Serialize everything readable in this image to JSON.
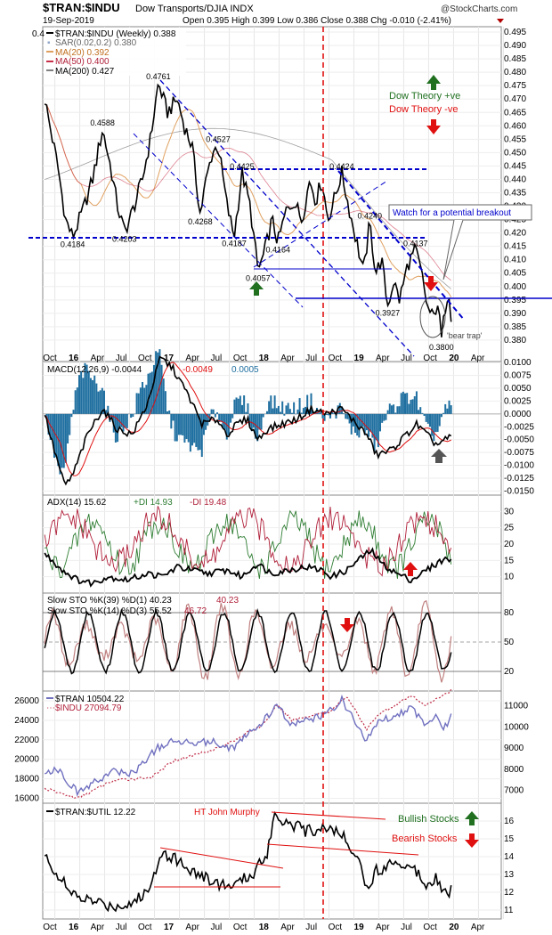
{
  "header": {
    "symbol": "$TRAN:$INDU",
    "description": "Dow Transports/DJIA INDX",
    "watermark": "@StockCharts.com",
    "date": "19-Sep-2019",
    "ohlc": "Open 0.395  High 0.399  Low 0.386  Close 0.388  Chg -0.010 (-2.41%)",
    "partial_left": "0.4"
  },
  "colors": {
    "black": "#000000",
    "sar": "#8fa6c8",
    "ma20": "#e0a060",
    "ma50": "#c8304a",
    "ma200": "#a0a0a0",
    "red": "#e01010",
    "blue": "#0000cc",
    "green": "#207020",
    "macd_hist": "#1f6fa0",
    "macd_signal": "#e01010",
    "plus_di": "#2e7d32",
    "minus_di": "#b0203a",
    "sto_slow": "#c08080",
    "tran": "#7070c0",
    "indu": "#c0304a"
  },
  "x_axis": [
    "Oct",
    "16",
    "Apr",
    "Jul",
    "Oct",
    "17",
    "Apr",
    "Jul",
    "Oct",
    "18",
    "Apr",
    "Jul",
    "Oct",
    "19",
    "Apr",
    "Jul",
    "Oct",
    "20",
    "Apr"
  ],
  "chart_data": [
    {
      "type": "line",
      "panel": "price",
      "legend": {
        "main": "$TRAN:$INDU (Weekly) 0.388",
        "sar": "SAR(0.02,0.2) 0.380",
        "ma20": "MA(20) 0.392",
        "ma50": "MA(50) 0.400",
        "ma200": "MA(200) 0.427"
      },
      "ylim": [
        0.372,
        0.497
      ],
      "y_ticks": [
        "0.495",
        "0.490",
        "0.485",
        "0.480",
        "0.475",
        "0.470",
        "0.465",
        "0.460",
        "0.455",
        "0.450",
        "0.445",
        "0.440",
        "0.435",
        "0.430",
        "0.425",
        "0.420",
        "0.415",
        "0.410",
        "0.405",
        "0.400",
        "0.395",
        "0.390",
        "0.385",
        "0.380"
      ],
      "price_labels": [
        "0.4184",
        "0.4203",
        "0.4588",
        "0.4761",
        "0.4268",
        "0.4527",
        "0.4425",
        "0.4187",
        "0.4057",
        "0.4164",
        "0.4424",
        "0.4240",
        "0.3927",
        "0.4137",
        "0.3800"
      ],
      "annotations": {
        "dow_pos": "Dow Theory +ve",
        "dow_neg": "Dow Theory -ve",
        "breakout": "Watch for a potential breakout",
        "bear_trap": "'bear trap'"
      }
    },
    {
      "type": "bar",
      "panel": "macd",
      "legend": {
        "macd": "MACD(12,26,9) -0.0044",
        "signal": "-0.0049",
        "hist": "0.0005"
      },
      "ylim": [
        -0.0158,
        0.0102
      ],
      "y_ticks": [
        "0.0100",
        "0.0075",
        "0.0050",
        "0.0025",
        "0.0000",
        "-0.0025",
        "-0.0050",
        "-0.0075",
        "-0.0100",
        "-0.0125",
        "-0.0150"
      ]
    },
    {
      "type": "line",
      "panel": "adx",
      "legend": {
        "adx": "ADX(14) 15.62",
        "plus": "+DI 14.93",
        "minus": "-DI 19.48"
      },
      "ylim": [
        5,
        35
      ],
      "y_ticks": [
        "30",
        "25",
        "20",
        "15",
        "10"
      ]
    },
    {
      "type": "line",
      "panel": "stoch",
      "legend": {
        "slow": "Slow STO %K(39) %D(1) 40.23",
        "slow_val": "40.23",
        "fast": "Slow STO %K(14) %D(3) 55.52",
        "fast_val": "46.72"
      },
      "ylim": [
        0,
        100
      ],
      "y_ticks": [
        "80",
        "50",
        "20"
      ]
    },
    {
      "type": "line",
      "panel": "tran_indu",
      "legend": {
        "tran": "$TRAN 10504.22",
        "indu": "$INDU 27094.79"
      },
      "left_ticks": [
        "26000",
        "24000",
        "22000",
        "20000",
        "18000",
        "16000"
      ],
      "right_ticks": [
        "11000",
        "10000",
        "9000",
        "8000",
        "7000"
      ]
    },
    {
      "type": "line",
      "panel": "tran_util",
      "legend": {
        "main": "$TRAN:$UTIL 12.22"
      },
      "ylim": [
        10.5,
        17
      ],
      "y_ticks": [
        "16",
        "15",
        "14",
        "13",
        "12",
        "11"
      ],
      "annotations": {
        "murphy": "HT John Murphy",
        "bullish": "Bullish Stocks",
        "bearish": "Bearish Stocks"
      }
    }
  ]
}
